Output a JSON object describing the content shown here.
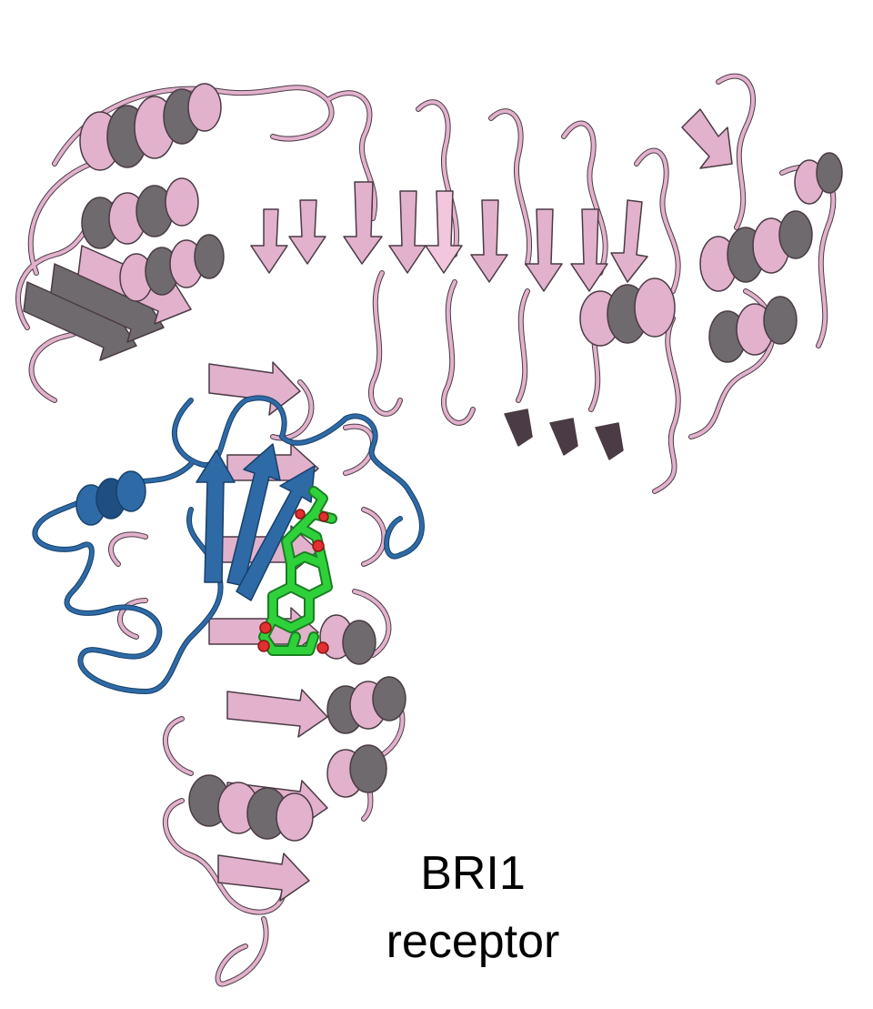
{
  "label": {
    "line1": "BRI1",
    "line2": "receptor"
  },
  "colors": {
    "receptor": "#e2b1cc",
    "receptor_dark": "#4a3b44",
    "receptor_sheet_grey": "#6f6a6d",
    "coreceptor": "#2e6aa6",
    "ligand": "#2fd13a",
    "ligand_oxygen": "#e03030",
    "background": "#ffffff",
    "text": "#000000"
  }
}
